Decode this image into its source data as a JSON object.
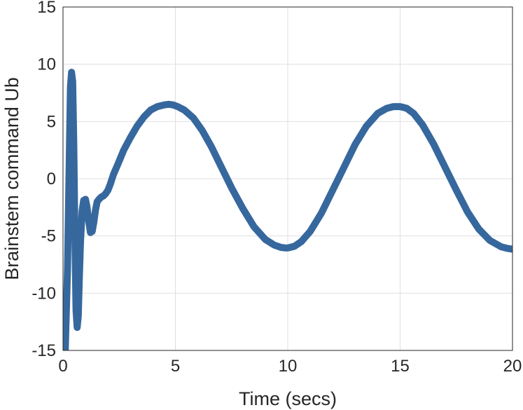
{
  "chart_data": {
    "type": "line",
    "title": "",
    "xlabel": "Time (secs)",
    "ylabel": "Brainstem command Ub",
    "xlim": [
      0,
      20
    ],
    "ylim": [
      -15,
      15
    ],
    "xticks": [
      0,
      5,
      10,
      15,
      20
    ],
    "yticks": [
      -15,
      -10,
      -5,
      0,
      5,
      10,
      15
    ],
    "xtick_labels": [
      "0",
      "5",
      "10",
      "15",
      "20"
    ],
    "ytick_labels": [
      "-15",
      "-10",
      "-5",
      "0",
      "5",
      "10",
      "15"
    ],
    "grid": true,
    "line_color": "#36689e",
    "series": [
      {
        "x": [
          0.1,
          0.2,
          0.28,
          0.33,
          0.38,
          0.43,
          0.48,
          0.53,
          0.58,
          0.63,
          0.68,
          0.73,
          0.78,
          0.85,
          0.92,
          1.0,
          1.07,
          1.15,
          1.22,
          1.3,
          1.37,
          1.45,
          1.52,
          1.6,
          1.7,
          1.8,
          1.9,
          2.0,
          2.1,
          2.25,
          2.45,
          2.7,
          3.0,
          3.3,
          3.6,
          3.9,
          4.2,
          4.5,
          4.7,
          4.9,
          5.1,
          5.4,
          5.8,
          6.2,
          6.6,
          7.0,
          7.5,
          8.0,
          8.5,
          9.0,
          9.4,
          9.7,
          9.9,
          10.0,
          10.1,
          10.3,
          10.6,
          11.0,
          11.5,
          12.0,
          12.5,
          13.0,
          13.5,
          14.0,
          14.4,
          14.7,
          14.9,
          15.0,
          15.1,
          15.3,
          15.6,
          16.0,
          16.5,
          17.0,
          17.5,
          18.0,
          18.5,
          19.0,
          19.5,
          19.8,
          20.0
        ],
        "y": [
          -15.0,
          -8.0,
          2.0,
          8.0,
          9.3,
          8.5,
          3.0,
          -5.0,
          -11.5,
          -13.0,
          -12.0,
          -8.5,
          -5.5,
          -2.8,
          -1.9,
          -1.8,
          -2.5,
          -3.8,
          -4.7,
          -4.6,
          -3.8,
          -2.7,
          -2.0,
          -1.8,
          -1.6,
          -1.5,
          -1.3,
          -1.0,
          -0.5,
          0.4,
          1.3,
          2.5,
          3.6,
          4.6,
          5.4,
          6.0,
          6.3,
          6.45,
          6.5,
          6.45,
          6.3,
          6.0,
          5.3,
          4.2,
          2.8,
          1.2,
          -0.8,
          -2.6,
          -4.2,
          -5.3,
          -5.8,
          -6.0,
          -6.05,
          -6.05,
          -6.0,
          -5.9,
          -5.5,
          -4.6,
          -3.0,
          -1.0,
          1.0,
          3.0,
          4.6,
          5.7,
          6.15,
          6.3,
          6.3,
          6.3,
          6.25,
          6.15,
          5.7,
          4.7,
          3.0,
          1.0,
          -1.0,
          -2.9,
          -4.4,
          -5.4,
          -5.95,
          -6.1,
          -6.15
        ]
      }
    ]
  }
}
